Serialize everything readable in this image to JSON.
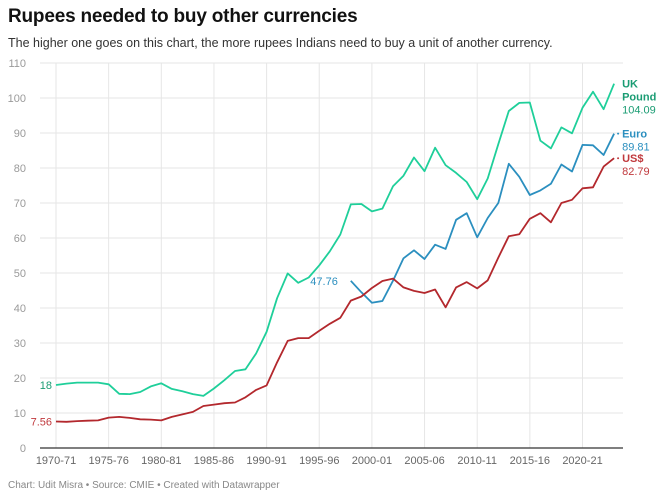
{
  "header": {
    "title": "Rupees needed to buy other currencies",
    "subtitle": "The higher one goes on this chart, the more rupees Indians need to buy a unit of another currency."
  },
  "footer": "Chart: Udit Misra • Source: CMIE • Created with Datawrapper",
  "chart_data": {
    "type": "line",
    "title": "Rupees needed to buy other currencies",
    "xlabel": "",
    "ylabel": "",
    "ylim": [
      0,
      110
    ],
    "yticks": [
      0,
      10,
      20,
      30,
      40,
      50,
      60,
      70,
      80,
      90,
      100,
      110
    ],
    "ytick_labels": [
      "0",
      "10",
      "20",
      "30",
      "40",
      "50",
      "60",
      "70",
      "80",
      "90",
      "100",
      "110"
    ],
    "x_start_year": 1970,
    "x_end_year": 2023,
    "xtick_labels": [
      "1970-71",
      "1975-76",
      "1980-81",
      "1985-86",
      "1990-91",
      "1995-96",
      "2000-01",
      "2005-06",
      "2010-11",
      "2015-16",
      "2020-21"
    ],
    "grid": true,
    "series": [
      {
        "name": "UK Pound",
        "label_line1": "UK",
        "label_line2": "Pound",
        "color": "#1fcf9a",
        "label_color": "#1a9c73",
        "start_year": 1970,
        "start_label": "18",
        "end_label": "104.09",
        "values": [
          18,
          18.4,
          18.7,
          18.7,
          18.7,
          18.2,
          15.5,
          15.4,
          16.0,
          17.6,
          18.5,
          16.9,
          16.2,
          15.4,
          14.9,
          17.0,
          19.4,
          22.0,
          22.5,
          27.0,
          33.2,
          42.8,
          49.9,
          47.2,
          48.7,
          52.2,
          56.2,
          61.0,
          69.6,
          69.7,
          67.6,
          68.4,
          74.8,
          77.8,
          83.0,
          79.1,
          85.8,
          80.8,
          78.6,
          76.0,
          71.1,
          77.0,
          86.8,
          96.3,
          98.6,
          98.7,
          87.8,
          85.6,
          91.6,
          89.9,
          97.2,
          101.8,
          96.8,
          104.09
        ]
      },
      {
        "name": "Euro",
        "label_line1": "Euro",
        "color": "#2b8fbf",
        "label_color": "#2b8fbf",
        "start_year": 1998,
        "start_label": "47.76",
        "end_label": "89.81",
        "values": [
          47.76,
          44.5,
          41.5,
          42.0,
          47.8,
          54.2,
          56.5,
          54.0,
          58.1,
          56.9,
          65.2,
          67.1,
          60.2,
          65.7,
          70.0,
          81.2,
          77.5,
          72.3,
          73.6,
          75.5,
          81.0,
          79.0,
          86.6,
          86.5,
          83.7,
          89.81
        ]
      },
      {
        "name": "US$",
        "label_line1": "US$",
        "color": "#b3282d",
        "label_color": "#c0393d",
        "start_year": 1970,
        "start_label": "7.56",
        "end_label": "82.79",
        "values": [
          7.56,
          7.5,
          7.7,
          7.8,
          7.9,
          8.7,
          8.9,
          8.6,
          8.2,
          8.1,
          7.9,
          8.9,
          9.6,
          10.3,
          12.0,
          12.4,
          12.8,
          13.0,
          14.5,
          16.6,
          17.9,
          24.5,
          30.6,
          31.4,
          31.4,
          33.5,
          35.5,
          37.2,
          42.1,
          43.3,
          45.7,
          47.7,
          48.4,
          45.9,
          44.9,
          44.3,
          45.3,
          40.2,
          45.9,
          47.4,
          45.6,
          47.9,
          54.4,
          60.5,
          61.1,
          65.5,
          67.1,
          64.5,
          70.0,
          70.9,
          74.2,
          74.5,
          80.4,
          82.79
        ]
      }
    ]
  }
}
